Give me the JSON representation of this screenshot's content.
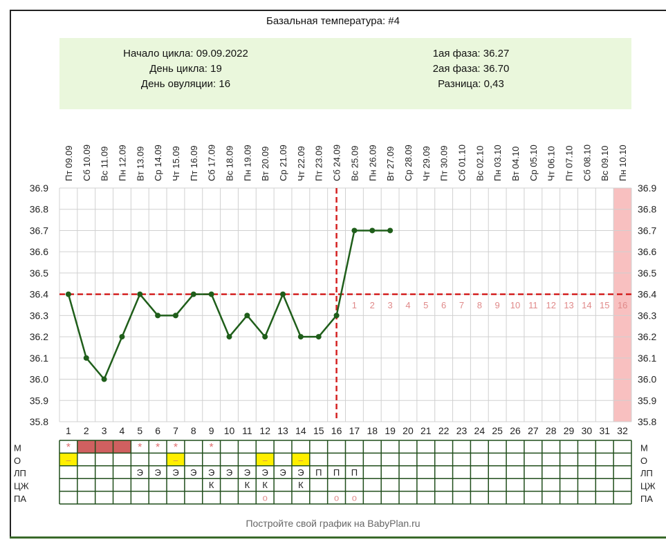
{
  "title": "Базальная температура: #4",
  "info": {
    "left": [
      "Начало цикла: 09.09.2022",
      "День цикла: 19",
      "День овуляции: 16"
    ],
    "right": [
      "1ая фаза: 36.27",
      "2ая фаза: 36.70",
      "Разница: 0,43"
    ]
  },
  "footer": "Постройте свой график на BabyPlan.ru",
  "chart_data": {
    "type": "line",
    "title": "Базальная температура: #4",
    "dates": [
      "Пт 09.09",
      "Сб 10.09",
      "Вс 11.09",
      "Пн 12.09",
      "Вт 13.09",
      "Ср 14.09",
      "Чт 15.09",
      "Пт 16.09",
      "Сб 17.09",
      "Вс 18.09",
      "Пн 19.09",
      "Вт 20.09",
      "Ср 21.09",
      "Чт 22.09",
      "Пт 23.09",
      "Сб 24.09",
      "Вс 25.09",
      "Пн 26.09",
      "Вт 27.09",
      "Ср 28.09",
      "Чт 29.09",
      "Пт 30.09",
      "Сб 01.10",
      "Вс 02.10",
      "Пн 03.10",
      "Вт 04.10",
      "Ср 05.10",
      "Чт 06.10",
      "Пт 07.10",
      "Сб 08.10",
      "Вс 09.10",
      "Пн 10.10"
    ],
    "days": [
      1,
      2,
      3,
      4,
      5,
      6,
      7,
      8,
      9,
      10,
      11,
      12,
      13,
      14,
      15,
      16,
      17,
      18,
      19,
      20,
      21,
      22,
      23,
      24,
      25,
      26,
      27,
      28,
      29,
      30,
      31,
      32
    ],
    "temperatures": [
      36.4,
      36.1,
      36.0,
      36.2,
      36.4,
      36.3,
      36.3,
      36.4,
      36.4,
      36.2,
      36.3,
      36.2,
      36.4,
      36.2,
      36.2,
      36.3,
      36.7,
      36.7,
      36.7
    ],
    "ylim": [
      35.8,
      36.9
    ],
    "yticks": [
      "36.9",
      "36.8",
      "36.7",
      "36.6",
      "36.5",
      "36.4",
      "36.3",
      "36.2",
      "36.1",
      "36.0",
      "35.9",
      "35.8"
    ],
    "coverline": 36.4,
    "ovulation_day": 16,
    "luteal_day_labels": [
      "1",
      "2",
      "3",
      "4",
      "5",
      "6",
      "7",
      "8",
      "9",
      "10",
      "11",
      "12",
      "13",
      "14",
      "15",
      "16"
    ],
    "highlight_day": 32,
    "grid": true,
    "colors": {
      "line": "#1f5e1a",
      "marker": "#1f5e1a",
      "reference": "#d42020",
      "luteal_labels": "#e08a8a",
      "highlight": "#f8c0c0",
      "table_border": "#1f4d1a",
      "period": "#d06060",
      "star": "#e07070",
      "mucus": "#ffef00"
    }
  },
  "table": {
    "row_labels": [
      "М",
      "О",
      "ЛП",
      "ЦЖ",
      "ПА"
    ],
    "M": {
      "period_days": [
        2,
        3,
        4
      ],
      "star_days": [
        1,
        5,
        6,
        7,
        9
      ],
      "star": "*"
    },
    "O": {
      "days": [
        1,
        7,
        12,
        14
      ],
      "mark": "–"
    },
    "LP": {
      "days": [
        5,
        6,
        7,
        8,
        9,
        10,
        11,
        12,
        13,
        14,
        15,
        16,
        17
      ],
      "marks": [
        "Э",
        "Э",
        "Э",
        "Э",
        "Э",
        "Э",
        "Э",
        "Э",
        "Э",
        "Э",
        "П",
        "П",
        "П"
      ]
    },
    "CZh": {
      "days": [
        9,
        11,
        12,
        14
      ],
      "mark": "К"
    },
    "PA": {
      "days": [
        12,
        16,
        17
      ],
      "mark": "о"
    }
  }
}
